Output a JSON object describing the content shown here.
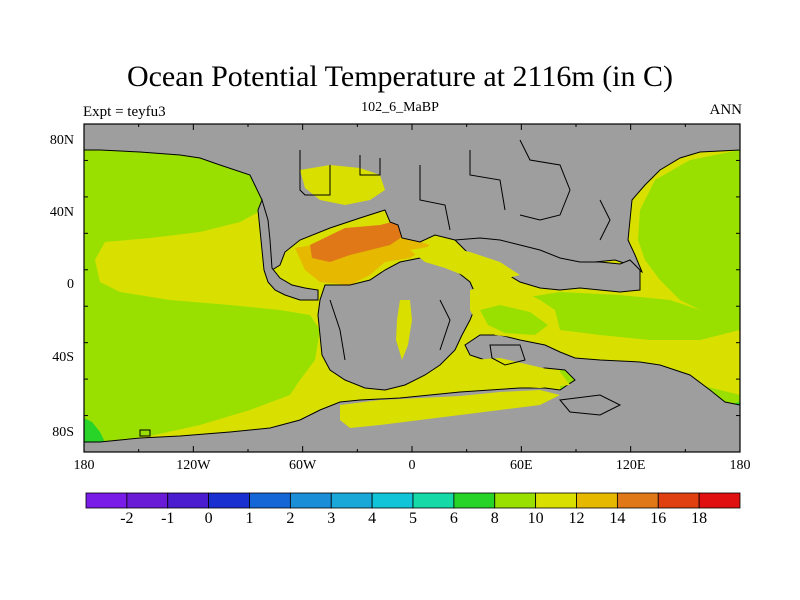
{
  "title": "Ocean Potential Temperature at 2116m (in C)",
  "left_label": "Expt = teyfu3",
  "center_label": "102_6_MaBP",
  "right_label": "ANN",
  "y_ticks": [
    "80N",
    "40N",
    "0",
    "40S",
    "80S"
  ],
  "x_ticks": [
    "180",
    "120W",
    "60W",
    "0",
    "60E",
    "120E",
    "180"
  ],
  "colorbar": {
    "colors": [
      "#7a1ce8",
      "#6a1bd6",
      "#4a1ed0",
      "#1a2fd0",
      "#1466d6",
      "#1b8ed8",
      "#19a8d8",
      "#12c4d8",
      "#16d9a8",
      "#28d428",
      "#99e000",
      "#d9e000",
      "#e6b800",
      "#e07818",
      "#e04010",
      "#e01010"
    ],
    "labels": [
      "-2",
      "-1",
      "0",
      "1",
      "2",
      "3",
      "4",
      "5",
      "6",
      "8",
      "10",
      "12",
      "14",
      "16",
      "18"
    ]
  },
  "colors": {
    "land": "#9e9e9e",
    "outline": "#000000"
  }
}
